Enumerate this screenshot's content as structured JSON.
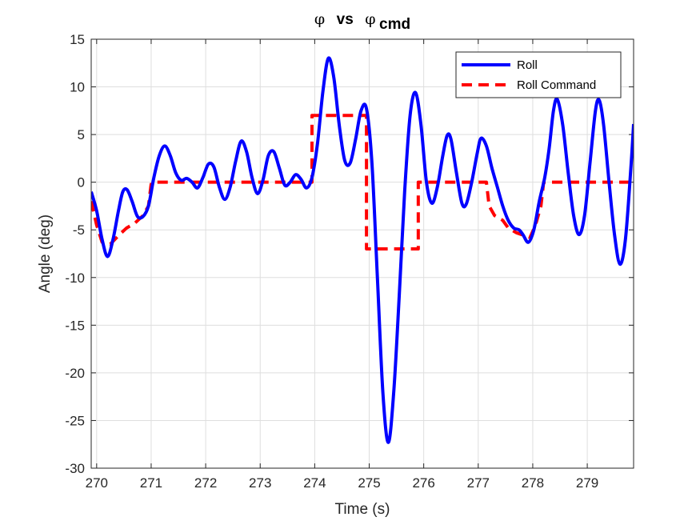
{
  "chart_data": {
    "type": "line",
    "title": {
      "symbol_left": "φ",
      "vs": "vs",
      "symbol_right": "φ",
      "subscript": "cmd"
    },
    "xlabel": "Time (s)",
    "ylabel": "Angle (deg)",
    "xlim": [
      269.9,
      279.85
    ],
    "ylim": [
      -30,
      15
    ],
    "xticks": [
      270,
      271,
      272,
      273,
      274,
      275,
      276,
      277,
      278,
      279
    ],
    "yticks": [
      15,
      10,
      5,
      0,
      -5,
      -10,
      -15,
      -20,
      -25,
      -30
    ],
    "grid": true,
    "legend_position": "top-right",
    "colors": {
      "roll": "#0000FF",
      "roll_command": "#FF0000"
    },
    "series": [
      {
        "name": "Roll",
        "style": "solid",
        "points": [
          [
            269.9,
            -1.0
          ],
          [
            270.0,
            -3.0
          ],
          [
            270.1,
            -6.0
          ],
          [
            270.2,
            -7.8
          ],
          [
            270.3,
            -6.0
          ],
          [
            270.4,
            -3.0
          ],
          [
            270.48,
            -1.0
          ],
          [
            270.56,
            -0.8
          ],
          [
            270.65,
            -2.0
          ],
          [
            270.75,
            -3.6
          ],
          [
            270.85,
            -3.6
          ],
          [
            270.95,
            -2.5
          ],
          [
            271.05,
            0.5
          ],
          [
            271.15,
            2.8
          ],
          [
            271.25,
            3.8
          ],
          [
            271.35,
            2.8
          ],
          [
            271.45,
            1.0
          ],
          [
            271.55,
            0.2
          ],
          [
            271.65,
            0.4
          ],
          [
            271.75,
            0.0
          ],
          [
            271.85,
            -0.6
          ],
          [
            271.95,
            0.5
          ],
          [
            272.05,
            1.9
          ],
          [
            272.15,
            1.6
          ],
          [
            272.25,
            -0.5
          ],
          [
            272.35,
            -1.8
          ],
          [
            272.45,
            -0.5
          ],
          [
            272.55,
            2.2
          ],
          [
            272.65,
            4.3
          ],
          [
            272.75,
            3.2
          ],
          [
            272.85,
            0.5
          ],
          [
            272.95,
            -1.2
          ],
          [
            273.05,
            0.2
          ],
          [
            273.15,
            2.8
          ],
          [
            273.25,
            3.2
          ],
          [
            273.35,
            1.5
          ],
          [
            273.45,
            -0.3
          ],
          [
            273.55,
            0.0
          ],
          [
            273.65,
            0.8
          ],
          [
            273.75,
            0.3
          ],
          [
            273.85,
            -0.6
          ],
          [
            273.95,
            0.5
          ],
          [
            274.05,
            4.0
          ],
          [
            274.15,
            9.5
          ],
          [
            274.25,
            13.0
          ],
          [
            274.35,
            11.0
          ],
          [
            274.45,
            6.0
          ],
          [
            274.55,
            2.3
          ],
          [
            274.65,
            2.0
          ],
          [
            274.75,
            4.5
          ],
          [
            274.85,
            7.5
          ],
          [
            274.95,
            7.7
          ],
          [
            275.05,
            2.0
          ],
          [
            275.15,
            -10.0
          ],
          [
            275.25,
            -22.0
          ],
          [
            275.35,
            -27.3
          ],
          [
            275.45,
            -22.0
          ],
          [
            275.55,
            -12.0
          ],
          [
            275.65,
            -1.0
          ],
          [
            275.75,
            7.0
          ],
          [
            275.85,
            9.4
          ],
          [
            275.95,
            6.0
          ],
          [
            276.05,
            0.0
          ],
          [
            276.15,
            -2.2
          ],
          [
            276.25,
            -0.5
          ],
          [
            276.35,
            2.8
          ],
          [
            276.43,
            4.9
          ],
          [
            276.5,
            4.5
          ],
          [
            276.6,
            1.0
          ],
          [
            276.7,
            -2.2
          ],
          [
            276.78,
            -2.3
          ],
          [
            276.88,
            0.0
          ],
          [
            276.98,
            3.0
          ],
          [
            277.05,
            4.6
          ],
          [
            277.15,
            3.8
          ],
          [
            277.25,
            1.5
          ],
          [
            277.35,
            -0.5
          ],
          [
            277.45,
            -2.5
          ],
          [
            277.55,
            -4.0
          ],
          [
            277.65,
            -4.8
          ],
          [
            277.75,
            -5.0
          ],
          [
            277.82,
            -5.5
          ],
          [
            277.92,
            -6.3
          ],
          [
            278.02,
            -5.0
          ],
          [
            278.12,
            -2.0
          ],
          [
            278.22,
            0.5
          ],
          [
            278.3,
            3.5
          ],
          [
            278.38,
            7.5
          ],
          [
            278.45,
            8.7
          ],
          [
            278.55,
            6.0
          ],
          [
            278.65,
            1.0
          ],
          [
            278.75,
            -3.5
          ],
          [
            278.85,
            -5.5
          ],
          [
            278.95,
            -3.5
          ],
          [
            279.05,
            2.0
          ],
          [
            279.15,
            7.5
          ],
          [
            279.22,
            8.6
          ],
          [
            279.3,
            6.0
          ],
          [
            279.4,
            0.0
          ],
          [
            279.5,
            -5.5
          ],
          [
            279.6,
            -8.6
          ],
          [
            279.7,
            -6.0
          ],
          [
            279.8,
            1.5
          ],
          [
            279.85,
            6.1
          ]
        ]
      },
      {
        "name": "Roll Command",
        "style": "dashed",
        "points": [
          [
            269.9,
            -2.0
          ],
          [
            270.0,
            -4.5
          ],
          [
            270.1,
            -6.3
          ],
          [
            270.25,
            -6.5
          ],
          [
            270.4,
            -5.6
          ],
          [
            270.55,
            -4.8
          ],
          [
            270.7,
            -4.3
          ],
          [
            270.85,
            -3.5
          ],
          [
            270.95,
            -2.5
          ],
          [
            271.0,
            -0.2
          ],
          [
            271.05,
            0.0
          ],
          [
            273.95,
            0.0
          ],
          [
            273.95,
            7.0
          ],
          [
            274.95,
            7.0
          ],
          [
            274.95,
            -7.0
          ],
          [
            275.9,
            -7.0
          ],
          [
            275.9,
            0.0
          ],
          [
            277.15,
            0.0
          ],
          [
            277.2,
            -2.5
          ],
          [
            277.3,
            -3.5
          ],
          [
            277.45,
            -4.0
          ],
          [
            277.55,
            -4.8
          ],
          [
            277.7,
            -5.3
          ],
          [
            277.8,
            -5.5
          ],
          [
            277.95,
            -5.8
          ],
          [
            278.05,
            -4.5
          ],
          [
            278.15,
            -2.5
          ],
          [
            278.2,
            0.0
          ],
          [
            279.85,
            0.0
          ]
        ]
      }
    ]
  }
}
